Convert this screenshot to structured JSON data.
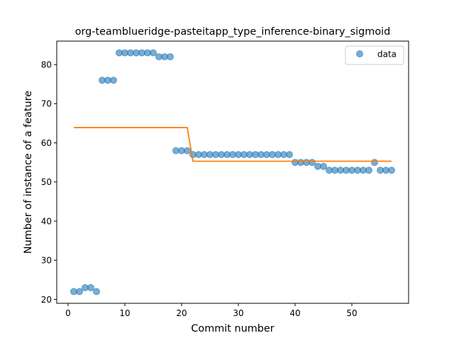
{
  "chart_data": {
    "type": "scatter",
    "title": "org-teamblueridge-pasteitapp_type_inference-binary_sigmoid",
    "xlabel": "Commit number",
    "ylabel": "Number of instance of a feature",
    "xlim": [
      -2,
      60
    ],
    "ylim": [
      19,
      86
    ],
    "xticks": [
      0,
      10,
      20,
      30,
      40,
      50
    ],
    "yticks": [
      20,
      30,
      40,
      50,
      60,
      70,
      80
    ],
    "grid": false,
    "legend_position": "top-right",
    "series": [
      {
        "name": "data",
        "kind": "scatter",
        "color": "#1f77b4",
        "x": [
          1,
          2,
          3,
          4,
          5,
          6,
          7,
          8,
          9,
          10,
          11,
          12,
          13,
          14,
          15,
          16,
          17,
          18,
          19,
          20,
          21,
          22,
          23,
          24,
          25,
          26,
          27,
          28,
          29,
          30,
          31,
          32,
          33,
          34,
          35,
          36,
          37,
          38,
          39,
          40,
          41,
          42,
          43,
          44,
          45,
          46,
          47,
          48,
          49,
          50,
          51,
          52,
          53,
          54,
          55,
          56,
          57
        ],
        "y": [
          22,
          22,
          23,
          23,
          22,
          76,
          76,
          76,
          83,
          83,
          83,
          83,
          83,
          83,
          83,
          82,
          82,
          82,
          58,
          58,
          58,
          57,
          57,
          57,
          57,
          57,
          57,
          57,
          57,
          57,
          57,
          57,
          57,
          57,
          57,
          57,
          57,
          57,
          57,
          55,
          55,
          55,
          55,
          54,
          54,
          53,
          53,
          53,
          53,
          53,
          53,
          53,
          53,
          55,
          53,
          53,
          53
        ]
      },
      {
        "kind": "line",
        "color": "#ff7f0e",
        "x": [
          1,
          21,
          22,
          57
        ],
        "y": [
          63.9,
          63.9,
          55.3,
          55.3
        ]
      }
    ]
  }
}
